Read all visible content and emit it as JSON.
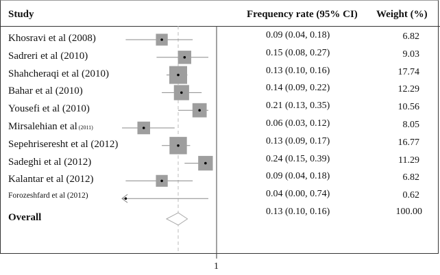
{
  "header": {
    "study_label": "Study",
    "ci_label": "Frequency rate (95% CI)",
    "weight_label": "Weight (%)"
  },
  "chart_data": {
    "type": "forest",
    "null_line": 1,
    "x_axis_tick": "1",
    "studies": [
      {
        "name": "Khosravi et al (2008)",
        "ci_text": "0.09 (0.04, 0.18)",
        "estimate": 0.09,
        "lower": 0.04,
        "upper": 0.18,
        "weight": "6.82"
      },
      {
        "name": "Sadreri et al (2010)",
        "ci_text": "0.15 (0.08, 0.27)",
        "estimate": 0.15,
        "lower": 0.08,
        "upper": 0.27,
        "weight": "9.03"
      },
      {
        "name": "Shahcheraqi et al (2010)",
        "ci_text": "0.13 (0.10, 0.16)",
        "estimate": 0.13,
        "lower": 0.1,
        "upper": 0.16,
        "weight": "17.74"
      },
      {
        "name": "Bahar et al (2010)",
        "ci_text": "0.14 (0.09, 0.22)",
        "estimate": 0.14,
        "lower": 0.09,
        "upper": 0.22,
        "weight": "12.29"
      },
      {
        "name": "Yousefi et al (2010)",
        "ci_text": "0.21 (0.13, 0.35)",
        "estimate": 0.21,
        "lower": 0.13,
        "upper": 0.35,
        "weight": "10.56"
      },
      {
        "name": "Mirsalehian et al",
        "name_suffix": "(2011)",
        "ci_text": "0.06 (0.03, 0.12)",
        "estimate": 0.06,
        "lower": 0.03,
        "upper": 0.12,
        "weight": "8.05"
      },
      {
        "name": "Sepehriseresht et al (2012)",
        "ci_text": "0.13 (0.09, 0.17)",
        "estimate": 0.13,
        "lower": 0.09,
        "upper": 0.17,
        "weight": "16.77"
      },
      {
        "name": "Sadeghi et al (2012)",
        "ci_text": "0.24 (0.15, 0.39)",
        "estimate": 0.24,
        "lower": 0.15,
        "upper": 0.39,
        "weight": "11.29"
      },
      {
        "name": "Kalantar et al (2012)",
        "ci_text": "0.09 (0.04, 0.18)",
        "estimate": 0.09,
        "lower": 0.04,
        "upper": 0.18,
        "weight": "6.82"
      },
      {
        "name": "Forozeshfard et al (2012)",
        "ci_text": "0.04 (0.00, 0.74)",
        "estimate": 0.04,
        "lower": 0.0,
        "upper": 0.74,
        "weight": "0.62"
      }
    ],
    "overall": {
      "name": "Overall",
      "ci_text": "0.13 (0.10, 0.16)",
      "estimate": 0.13,
      "lower": 0.1,
      "upper": 0.16,
      "weight": "100.00"
    },
    "colors": {
      "box": "#9e9e9e",
      "line": "#555555",
      "dashed": "#bbbbbb",
      "diamond": "#aaaaaa"
    }
  }
}
